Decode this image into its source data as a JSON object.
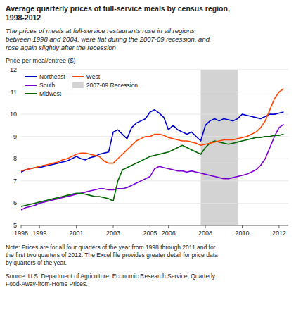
{
  "chart_data": {
    "type": "line",
    "title": "Average quarterly prices of full-service meals by census region,\n1998-2012",
    "subtitle": "The prices of meals at full-service restaurants rose in all regions\nbetween 1998 and 2004, were flat during the 2007-09 recession, and\nrose again slightly after the recession",
    "y_label": "Price per meal/entree ($)",
    "annotations": [
      "Note: Prices are for all four quarters of the year from 1998 through 2011 and for\nthe first two quarters of 2012. The Excel file provides greater detail for price data\nby quarters of the year.",
      "Source: U.S. Department of Agriculture, Economic Research Service, Quarterly\nFood-Away-from-Home Prices."
    ],
    "x": [
      1998.0,
      1998.25,
      1998.5,
      1998.75,
      1999.0,
      1999.25,
      1999.5,
      1999.75,
      2000.0,
      2000.25,
      2000.5,
      2000.75,
      2001.0,
      2001.25,
      2001.5,
      2001.75,
      2002.0,
      2002.25,
      2002.5,
      2002.75,
      2003.0,
      2003.25,
      2003.5,
      2003.75,
      2004.0,
      2004.25,
      2004.5,
      2004.75,
      2005.0,
      2005.25,
      2005.5,
      2005.75,
      2006.0,
      2006.25,
      2006.5,
      2006.75,
      2007.0,
      2007.25,
      2007.5,
      2007.75,
      2008.0,
      2008.25,
      2008.5,
      2008.75,
      2009.0,
      2009.25,
      2009.5,
      2009.75,
      2010.0,
      2010.25,
      2010.5,
      2010.75,
      2011.0,
      2011.25,
      2011.5,
      2011.75,
      2012.0,
      2012.25
    ],
    "series": [
      {
        "name": "Northeast",
        "color": "#0000cc",
        "values": [
          7.4,
          7.5,
          7.55,
          7.6,
          7.6,
          7.65,
          7.7,
          7.75,
          7.8,
          7.85,
          7.9,
          8.0,
          8.1,
          8.0,
          7.95,
          8.05,
          8.1,
          8.2,
          8.25,
          8.3,
          9.2,
          9.3,
          9.1,
          8.9,
          9.4,
          9.6,
          9.7,
          9.8,
          10.1,
          10.2,
          10.05,
          9.85,
          9.3,
          9.5,
          9.3,
          9.2,
          9.1,
          9.2,
          9.0,
          8.8,
          9.5,
          9.7,
          9.8,
          9.7,
          9.8,
          9.75,
          9.7,
          9.8,
          10.0,
          9.95,
          9.9,
          9.85,
          9.8,
          9.9,
          10.0,
          10.0,
          10.05,
          10.1
        ]
      },
      {
        "name": "South",
        "color": "#7b00d4",
        "values": [
          5.7,
          5.8,
          5.85,
          5.9,
          6.0,
          6.05,
          6.1,
          6.15,
          6.2,
          6.25,
          6.3,
          6.35,
          6.4,
          6.45,
          6.5,
          6.55,
          6.6,
          6.65,
          6.65,
          6.6,
          6.6,
          6.65,
          6.65,
          6.7,
          6.8,
          6.9,
          7.0,
          7.1,
          7.2,
          7.55,
          7.65,
          7.6,
          7.55,
          7.5,
          7.45,
          7.45,
          7.4,
          7.45,
          7.4,
          7.35,
          7.3,
          7.25,
          7.2,
          7.15,
          7.1,
          7.1,
          7.15,
          7.2,
          7.25,
          7.3,
          7.4,
          7.5,
          7.7,
          8.0,
          8.5,
          9.0,
          9.4,
          9.55
        ]
      },
      {
        "name": "Midwest",
        "color": "#006600",
        "values": [
          5.85,
          5.9,
          5.95,
          6.0,
          6.05,
          6.1,
          6.15,
          6.2,
          6.25,
          6.3,
          6.35,
          6.4,
          6.45,
          6.45,
          6.4,
          6.35,
          6.3,
          6.3,
          6.25,
          6.2,
          6.1,
          7.0,
          7.5,
          7.6,
          7.7,
          7.8,
          7.9,
          8.0,
          8.1,
          8.15,
          8.2,
          8.25,
          8.3,
          8.4,
          8.5,
          8.6,
          8.5,
          8.4,
          8.3,
          8.2,
          8.5,
          8.7,
          8.8,
          8.75,
          8.7,
          8.65,
          8.7,
          8.75,
          8.8,
          8.85,
          8.9,
          8.95,
          8.95,
          9.0,
          9.0,
          9.05,
          9.05,
          9.1
        ]
      },
      {
        "name": "West",
        "color": "#ff4500",
        "values": [
          7.45,
          7.5,
          7.55,
          7.6,
          7.65,
          7.7,
          7.75,
          7.8,
          7.85,
          7.95,
          8.0,
          8.1,
          8.2,
          8.25,
          8.25,
          8.2,
          8.15,
          8.1,
          7.9,
          7.8,
          7.8,
          8.0,
          8.2,
          8.4,
          8.6,
          8.8,
          8.9,
          9.0,
          9.0,
          9.1,
          9.1,
          9.05,
          8.95,
          8.9,
          8.85,
          8.8,
          8.8,
          8.75,
          8.7,
          8.6,
          8.65,
          8.7,
          8.75,
          8.8,
          8.85,
          8.85,
          8.85,
          8.9,
          8.95,
          9.0,
          9.1,
          9.2,
          9.4,
          9.7,
          10.2,
          10.7,
          11.0,
          11.15
        ]
      }
    ],
    "spans": [
      {
        "name": "2007-09 Recession",
        "start": 2007.75,
        "end": 2009.75,
        "color": "#d3d3d3"
      }
    ],
    "xlim": [
      1998,
      2012.5
    ],
    "xticks": [
      1998,
      1999,
      2001,
      2003,
      2005,
      2006,
      2008,
      2010,
      2012
    ],
    "ylim": [
      5,
      12
    ],
    "yticks": [
      5,
      6,
      7,
      8,
      9,
      10,
      11,
      12
    ],
    "grid": true,
    "legend": "upper left"
  }
}
